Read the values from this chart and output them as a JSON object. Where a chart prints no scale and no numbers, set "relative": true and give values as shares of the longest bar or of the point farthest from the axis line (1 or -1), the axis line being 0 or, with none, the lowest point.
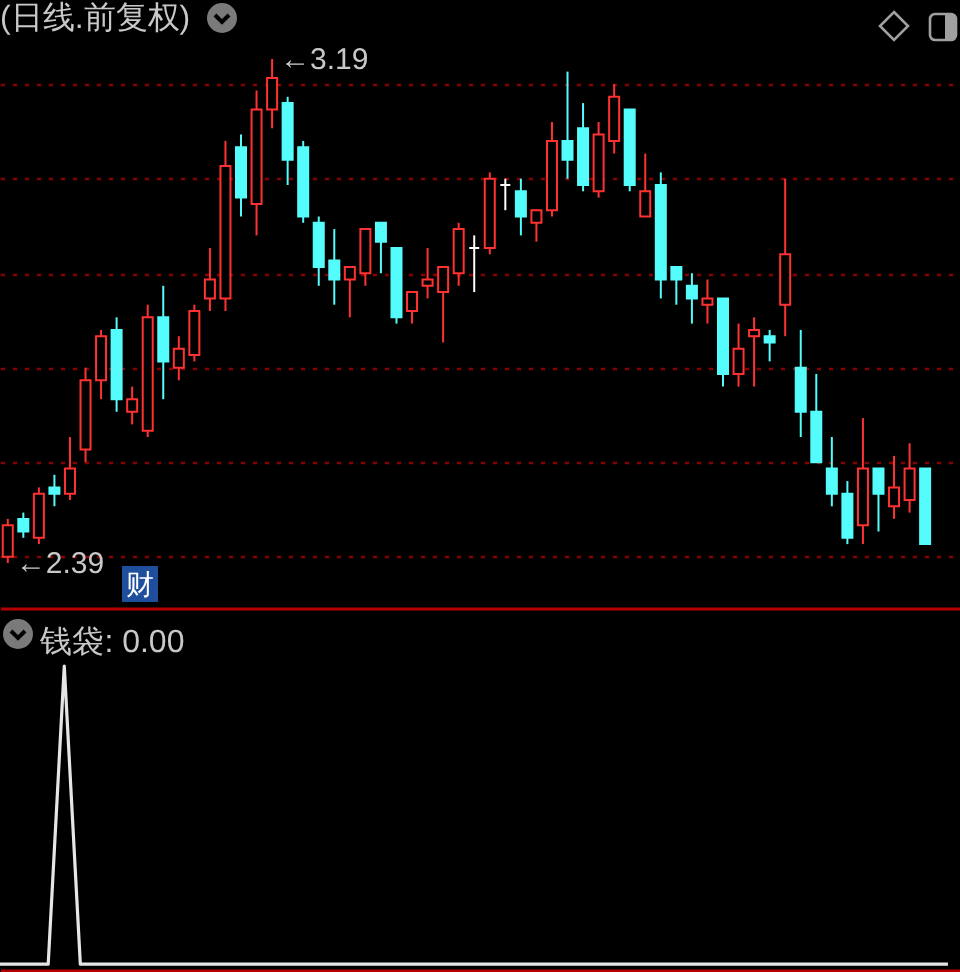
{
  "chart_data": [
    {
      "type": "candlestick",
      "title": "(日线.前复权)",
      "categories": [
        null,
        null,
        null,
        null,
        null,
        null,
        null,
        null,
        null,
        null,
        null,
        null,
        null,
        null,
        null,
        null,
        null,
        null,
        null,
        null,
        null,
        null,
        null,
        null,
        null,
        null,
        null,
        null,
        null,
        null,
        null,
        null,
        null,
        null,
        null,
        null,
        null,
        null,
        null,
        null,
        null,
        null,
        null,
        null,
        null,
        null,
        null,
        null,
        null,
        null,
        null,
        null,
        null,
        null,
        null,
        null,
        null,
        null,
        null,
        null
      ],
      "ohlc": [
        [
          2.4,
          2.46,
          2.39,
          2.45
        ],
        [
          2.46,
          2.47,
          2.43,
          2.44
        ],
        [
          2.43,
          2.51,
          2.42,
          2.5
        ],
        [
          2.51,
          2.53,
          2.48,
          2.5
        ],
        [
          2.5,
          2.59,
          2.49,
          2.54
        ],
        [
          2.57,
          2.7,
          2.55,
          2.68
        ],
        [
          2.68,
          2.76,
          2.65,
          2.75
        ],
        [
          2.76,
          2.78,
          2.63,
          2.65
        ],
        [
          2.63,
          2.67,
          2.61,
          2.65
        ],
        [
          2.6,
          2.8,
          2.59,
          2.78
        ],
        [
          2.78,
          2.83,
          2.65,
          2.71
        ],
        [
          2.7,
          2.75,
          2.68,
          2.73
        ],
        [
          2.72,
          2.8,
          2.71,
          2.79
        ],
        [
          2.81,
          2.89,
          2.79,
          2.84
        ],
        [
          2.81,
          3.06,
          2.79,
          3.02
        ],
        [
          3.05,
          3.07,
          2.94,
          2.97
        ],
        [
          2.96,
          3.14,
          2.91,
          3.11
        ],
        [
          3.11,
          3.19,
          3.08,
          3.16
        ],
        [
          3.12,
          3.13,
          2.99,
          3.03
        ],
        [
          3.05,
          3.06,
          2.93,
          2.94
        ],
        [
          2.93,
          2.94,
          2.83,
          2.86
        ],
        [
          2.87,
          2.92,
          2.8,
          2.84
        ],
        [
          2.84,
          2.86,
          2.78,
          2.86
        ],
        [
          2.85,
          2.92,
          2.83,
          2.92
        ],
        [
          2.93,
          2.93,
          2.85,
          2.9
        ],
        [
          2.89,
          2.89,
          2.77,
          2.78
        ],
        [
          2.79,
          2.82,
          2.77,
          2.82
        ],
        [
          2.83,
          2.89,
          2.81,
          2.84
        ],
        [
          2.82,
          2.86,
          2.74,
          2.86
        ],
        [
          2.85,
          2.93,
          2.83,
          2.92
        ],
        [
          2.89,
          2.91,
          2.82,
          2.89
        ],
        [
          2.89,
          3.01,
          2.88,
          3.0
        ],
        [
          2.99,
          3.0,
          2.95,
          2.99
        ],
        [
          2.98,
          3.0,
          2.91,
          2.94
        ],
        [
          2.93,
          2.95,
          2.9,
          2.95
        ],
        [
          2.95,
          3.09,
          2.94,
          3.06
        ],
        [
          3.06,
          3.17,
          3.0,
          3.03
        ],
        [
          3.08,
          3.12,
          2.98,
          2.99
        ],
        [
          2.98,
          3.09,
          2.97,
          3.07
        ],
        [
          3.06,
          3.15,
          3.04,
          3.13
        ],
        [
          3.11,
          3.11,
          2.98,
          2.99
        ],
        [
          2.94,
          3.04,
          2.94,
          2.98
        ],
        [
          2.99,
          3.01,
          2.81,
          2.84
        ],
        [
          2.86,
          2.86,
          2.8,
          2.84
        ],
        [
          2.83,
          2.85,
          2.77,
          2.81
        ],
        [
          2.8,
          2.84,
          2.77,
          2.81
        ],
        [
          2.81,
          2.81,
          2.67,
          2.69
        ],
        [
          2.69,
          2.77,
          2.67,
          2.73
        ],
        [
          2.75,
          2.78,
          2.67,
          2.76
        ],
        [
          2.75,
          2.76,
          2.71,
          2.74
        ],
        [
          2.8,
          3.0,
          2.75,
          2.88
        ],
        [
          2.7,
          2.76,
          2.59,
          2.63
        ],
        [
          2.63,
          2.69,
          2.55,
          2.55
        ],
        [
          2.54,
          2.59,
          2.48,
          2.5
        ],
        [
          2.5,
          2.52,
          2.42,
          2.43
        ],
        [
          2.45,
          2.62,
          2.42,
          2.54
        ],
        [
          2.54,
          2.54,
          2.44,
          2.5
        ],
        [
          2.48,
          2.56,
          2.46,
          2.51
        ],
        [
          2.49,
          2.58,
          2.47,
          2.54
        ],
        [
          2.54,
          2.54,
          2.42,
          2.42
        ]
      ],
      "colors": [
        "#ff3232",
        "#54fcfc",
        "#ff3232",
        "#54fcfc",
        "#ff3232",
        "#ff3232",
        "#ff3232",
        "#54fcfc",
        "#ff3232",
        "#ff3232",
        "#54fcfc",
        "#ff3232",
        "#ff3232",
        "#ff3232",
        "#ff3232",
        "#54fcfc",
        "#ff3232",
        "#ff3232",
        "#54fcfc",
        "#54fcfc",
        "#54fcfc",
        "#54fcfc",
        "#ff3232",
        "#ff3232",
        "#54fcfc",
        "#54fcfc",
        "#ff3232",
        "#ff3232",
        "#ff3232",
        "#ff3232",
        "#ffffff",
        "#ff3232",
        "#ffffff",
        "#54fcfc",
        "#ff3232",
        "#ff3232",
        "#54fcfc",
        "#54fcfc",
        "#ff3232",
        "#ff3232",
        "#54fcfc",
        "#ff3232",
        "#54fcfc",
        "#54fcfc",
        "#54fcfc",
        "#ff3232",
        "#54fcfc",
        "#ff3232",
        "#ff3232",
        "#54fcfc",
        "#ff3232",
        "#54fcfc",
        "#54fcfc",
        "#54fcfc",
        "#54fcfc",
        "#ff3232",
        "#54fcfc",
        "#ff3232",
        "#ff3232",
        "#54fcfc"
      ],
      "yticks": [
        {
          "value": 2.4,
          "label": null
        },
        {
          "value": 2.55,
          "label": null
        },
        {
          "value": 2.7,
          "label": null
        },
        {
          "value": 2.85,
          "label": null
        },
        {
          "value": 3.0,
          "label": null
        },
        {
          "value": 3.15,
          "label": null
        }
      ],
      "grid": "y",
      "tick_labels": false,
      "annotations": [
        "←3.19",
        "←2.39",
        "财"
      ]
    },
    {
      "type": "line",
      "title": "钱袋: 0.00",
      "categories": [
        null,
        null,
        null,
        null,
        null,
        null,
        null,
        null,
        null,
        null,
        null,
        null,
        null,
        null,
        null,
        null,
        null,
        null,
        null,
        null,
        null,
        null,
        null,
        null,
        null,
        null,
        null,
        null,
        null,
        null,
        null,
        null,
        null,
        null,
        null,
        null,
        null,
        null,
        null,
        null,
        null,
        null,
        null,
        null,
        null,
        null,
        null,
        null,
        null,
        null,
        null,
        null,
        null,
        null,
        null,
        null,
        null,
        null,
        null,
        null
      ],
      "series": [
        {
          "color": "#e6e6e6",
          "values": [
            0,
            0,
            0,
            0,
            1,
            0,
            0,
            0,
            0,
            0,
            0,
            0,
            0,
            0,
            0,
            0,
            0,
            0,
            0,
            0,
            0,
            0,
            0,
            0,
            0,
            0,
            0,
            0,
            0,
            0,
            0,
            0,
            0,
            0,
            0,
            0,
            0,
            0,
            0,
            0,
            0,
            0,
            0,
            0,
            0,
            0,
            0,
            0,
            0,
            0,
            0,
            0,
            0,
            0,
            0,
            0,
            0,
            0,
            0,
            0
          ]
        }
      ],
      "relative": true,
      "tick_labels": false
    }
  ]
}
